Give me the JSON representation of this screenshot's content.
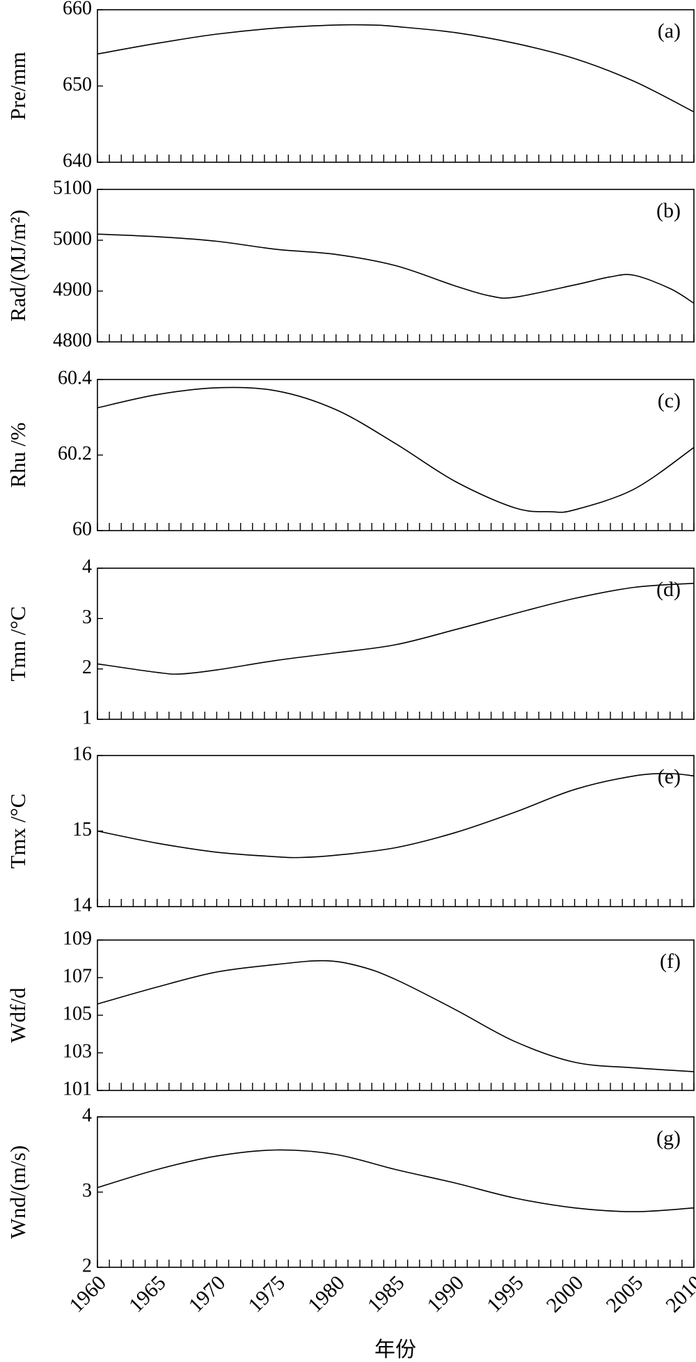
{
  "chart_data": [
    {
      "type": "line",
      "panel": "(a)",
      "ylabel": "Pre/mm",
      "ylim": [
        640,
        660
      ],
      "yticks": [
        640,
        650,
        660
      ],
      "xlim": [
        1960,
        2010
      ],
      "x": [
        1960,
        1965,
        1970,
        1975,
        1980,
        1983,
        1985,
        1990,
        1995,
        2000,
        2005,
        2010
      ],
      "y": [
        654.2,
        655.6,
        656.8,
        657.6,
        658.0,
        658.0,
        657.8,
        657.0,
        655.6,
        653.6,
        650.6,
        646.6
      ]
    },
    {
      "type": "line",
      "panel": "(b)",
      "ylabel": "Rad/(MJ/m²)",
      "ylim": [
        4800,
        5100
      ],
      "yticks": [
        4800,
        4900,
        5000,
        5100
      ],
      "xlim": [
        1960,
        2010
      ],
      "x": [
        1960,
        1965,
        1970,
        1975,
        1980,
        1985,
        1990,
        1993,
        1995,
        2000,
        2003,
        2005,
        2008,
        2010
      ],
      "y": [
        5012,
        5007,
        4998,
        4982,
        4972,
        4950,
        4910,
        4890,
        4888,
        4912,
        4928,
        4931,
        4905,
        4876
      ]
    },
    {
      "type": "line",
      "panel": "(c)",
      "ylabel": "Rhu /%",
      "ylim": [
        60,
        60.4
      ],
      "yticks": [
        60,
        60.2,
        60.4
      ],
      "xlim": [
        1960,
        2010
      ],
      "x": [
        1960,
        1965,
        1970,
        1975,
        1980,
        1985,
        1990,
        1995,
        1998,
        2000,
        2005,
        2010
      ],
      "y": [
        60.325,
        60.36,
        60.378,
        60.37,
        60.32,
        60.23,
        60.13,
        60.06,
        60.05,
        60.055,
        60.11,
        60.22
      ]
    },
    {
      "type": "line",
      "panel": "(d)",
      "ylabel": "Tmn /°C",
      "ylim": [
        1,
        4
      ],
      "yticks": [
        1,
        2,
        3,
        4
      ],
      "xlim": [
        1960,
        2010
      ],
      "x": [
        1960,
        1965,
        1967,
        1970,
        1975,
        1980,
        1985,
        1990,
        1995,
        2000,
        2005,
        2010
      ],
      "y": [
        2.1,
        1.93,
        1.9,
        1.98,
        2.17,
        2.32,
        2.48,
        2.78,
        3.1,
        3.4,
        3.62,
        3.7
      ]
    },
    {
      "type": "line",
      "panel": "(e)",
      "ylabel": "Tmx /°C",
      "ylim": [
        14,
        16
      ],
      "yticks": [
        14,
        15,
        16
      ],
      "xlim": [
        1960,
        2010
      ],
      "x": [
        1960,
        1965,
        1970,
        1975,
        1977,
        1980,
        1985,
        1990,
        1995,
        2000,
        2005,
        2008,
        2010
      ],
      "y": [
        15.0,
        14.84,
        14.72,
        14.66,
        14.65,
        14.68,
        14.78,
        14.98,
        15.25,
        15.55,
        15.73,
        15.76,
        15.73
      ]
    },
    {
      "type": "line",
      "panel": "(f)",
      "ylabel": "Wdf/d",
      "ylim": [
        101,
        109
      ],
      "yticks": [
        101,
        103,
        105,
        107,
        109
      ],
      "xlim": [
        1960,
        2010
      ],
      "x": [
        1960,
        1965,
        1970,
        1975,
        1979,
        1982,
        1985,
        1990,
        1995,
        2000,
        2005,
        2010
      ],
      "y": [
        105.6,
        106.5,
        107.3,
        107.7,
        107.9,
        107.6,
        106.9,
        105.3,
        103.6,
        102.5,
        102.2,
        102.0
      ]
    },
    {
      "type": "line",
      "panel": "(g)",
      "ylabel": "Wnd/(m/s)",
      "ylim": [
        2,
        4
      ],
      "yticks": [
        2,
        3,
        4
      ],
      "xlim": [
        1960,
        2010
      ],
      "x": [
        1960,
        1965,
        1970,
        1975,
        1980,
        1985,
        1990,
        1995,
        2000,
        2005,
        2010
      ],
      "y": [
        3.06,
        3.3,
        3.48,
        3.56,
        3.5,
        3.3,
        3.12,
        2.92,
        2.79,
        2.74,
        2.79
      ]
    }
  ],
  "x_axis": {
    "label": "年份",
    "tick_labels": [
      "1960",
      "1965",
      "1970",
      "1975",
      "1980",
      "1985",
      "1990",
      "1995",
      "2000",
      "2005",
      "2010"
    ]
  }
}
